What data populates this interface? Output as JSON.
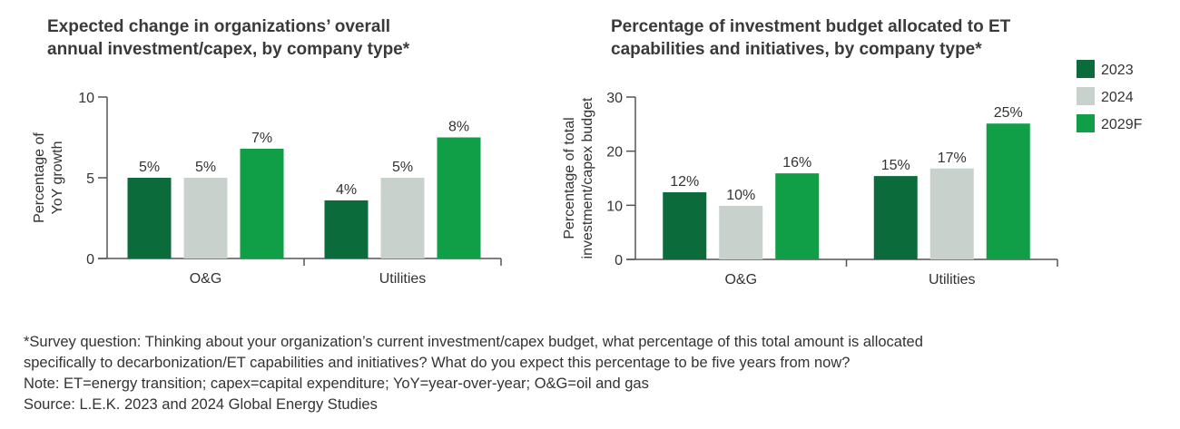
{
  "chart_data": [
    {
      "type": "bar",
      "title": [
        "Expected change in organizations’ overall",
        "annual investment/capex, by company type*"
      ],
      "ylabel": [
        "Percentage of",
        "YoY growth"
      ],
      "categories": [
        "O&G",
        "Utilities"
      ],
      "series": [
        {
          "color": "#0b6b3a",
          "values": [
            5,
            3.6
          ],
          "value_labels": [
            "5%",
            "4%"
          ]
        },
        {
          "color": "#c9d1cd",
          "values": [
            5,
            5
          ],
          "value_labels": [
            "5%",
            "5%"
          ]
        },
        {
          "color": "#109e47",
          "values": [
            6.8,
            7.5
          ],
          "value_labels": [
            "7%",
            "8%"
          ]
        }
      ],
      "ylim": [
        0,
        10
      ],
      "yticks": [
        0,
        5,
        10
      ]
    },
    {
      "type": "bar",
      "title": [
        "Percentage of investment budget allocated to ET",
        "capabilities and initiatives, by company type*"
      ],
      "ylabel": [
        "Percentage  of total",
        "investment/capex budget"
      ],
      "categories": [
        "O&G",
        "Utilities"
      ],
      "series": [
        {
          "name": "2023",
          "color": "#0b6b3a",
          "values": [
            12.4,
            15.4
          ],
          "value_labels": [
            "12%",
            "15%"
          ]
        },
        {
          "name": "2024",
          "color": "#c9d1cd",
          "values": [
            9.9,
            16.8
          ],
          "value_labels": [
            "10%",
            "17%"
          ]
        },
        {
          "name": "2029F",
          "color": "#109e47",
          "values": [
            15.9,
            25.1
          ],
          "value_labels": [
            "16%",
            "25%"
          ]
        }
      ],
      "ylim": [
        0,
        30
      ],
      "yticks": [
        0,
        10,
        20,
        30
      ]
    }
  ],
  "notes": [
    "*Survey question: Thinking about your organization’s current investment/capex budget, what percentage of this total amount is allocated",
    "specifically to decarbonization/ET capabilities and initiatives? What do you expect this percentage to be five years from now?",
    "Note: ET=energy transition; capex=capital expenditure; YoY=year-over-year; O&G=oil and gas",
    "Source: L.E.K. 2023 and 2024 Global Energy Studies"
  ]
}
